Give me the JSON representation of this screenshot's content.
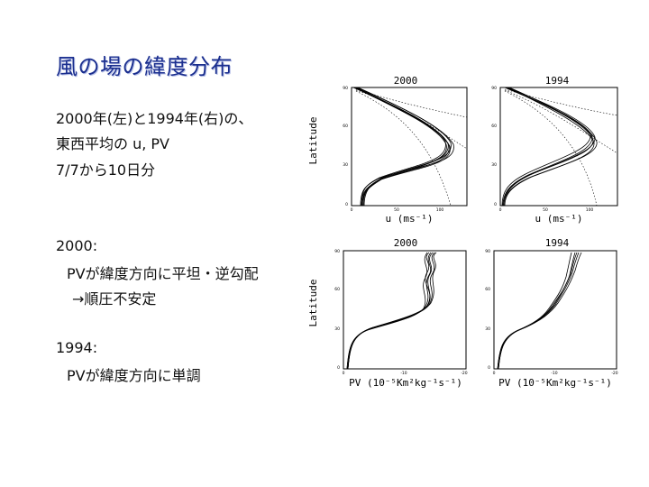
{
  "title": "風の場の緯度分布",
  "intro": {
    "line1": "2000年(左)と1994年(右)の、",
    "line2": "東西平均の u, PV",
    "line3": "7/7から10日分"
  },
  "note2000": {
    "heading": "2000:",
    "line1": "PVが緯度方向に平坦・逆勾配",
    "line2": "→順圧不安定"
  },
  "note1994": {
    "heading": "1994:",
    "line1": "PVが緯度方向に単調"
  },
  "panels": {
    "u2000": {
      "title": "2000",
      "ylabel": "Latitude",
      "xlabel": "u (ms⁻¹)",
      "xticks": [
        "0",
        "50",
        "100"
      ],
      "yticks": [
        "0",
        "30",
        "60",
        "90"
      ]
    },
    "u1994": {
      "title": "1994",
      "xlabel": "u (ms⁻¹)",
      "xticks": [
        "0",
        "50",
        "100"
      ],
      "yticks": [
        "0",
        "30",
        "60",
        "90"
      ]
    },
    "pv2000": {
      "title": "2000",
      "ylabel": "Latitude",
      "xlabel": "PV (10⁻⁵Km²kg⁻¹s⁻¹)",
      "xticks": [
        "0",
        "-10",
        "-20"
      ],
      "yticks": [
        "0",
        "30",
        "60",
        "90"
      ]
    },
    "pv1994": {
      "title": "1994",
      "xlabel": "PV (10⁻⁵Km²kg⁻¹s⁻¹)",
      "xticks": [
        "0",
        "-10",
        "-20"
      ],
      "yticks": [
        "0",
        "30",
        "60",
        "90"
      ]
    }
  },
  "chart_data": [
    {
      "type": "line",
      "title": "2000",
      "xlabel": "u (ms⁻¹)",
      "ylabel": "Latitude",
      "xlim": [
        0,
        120
      ],
      "ylim": [
        0,
        90
      ],
      "series": [
        {
          "x": [
            10,
            20,
            40,
            70,
            95,
            85,
            55,
            25,
            5
          ],
          "y": [
            0,
            10,
            20,
            30,
            40,
            50,
            65,
            80,
            90
          ]
        }
      ]
    },
    {
      "type": "line",
      "title": "1994",
      "xlabel": "u (ms⁻¹)",
      "xlim": [
        0,
        120
      ],
      "ylim": [
        0,
        90
      ],
      "series": [
        {
          "x": [
            2,
            10,
            25,
            60,
            80,
            70,
            45,
            20,
            5
          ],
          "y": [
            0,
            10,
            20,
            30,
            45,
            55,
            65,
            80,
            90
          ]
        }
      ]
    },
    {
      "type": "line",
      "title": "2000",
      "xlabel": "PV (10⁻⁵Km²kg⁻¹s⁻¹)",
      "ylabel": "Latitude",
      "xlim": [
        0,
        -20
      ],
      "ylim": [
        0,
        90
      ],
      "series": [
        {
          "x": [
            0,
            -1,
            -5,
            -11,
            -12.5,
            -12,
            -13,
            -12,
            -11.5
          ],
          "y": [
            0,
            20,
            30,
            40,
            50,
            60,
            70,
            80,
            90
          ]
        }
      ]
    },
    {
      "type": "line",
      "title": "1994",
      "xlabel": "PV (10⁻⁵Km²kg⁻¹s⁻¹)",
      "xlim": [
        0,
        -20
      ],
      "ylim": [
        0,
        90
      ],
      "series": [
        {
          "x": [
            0,
            -1,
            -4,
            -8,
            -10,
            -12,
            -12.5,
            -13
          ],
          "y": [
            0,
            20,
            30,
            45,
            55,
            65,
            75,
            90
          ]
        }
      ]
    }
  ]
}
